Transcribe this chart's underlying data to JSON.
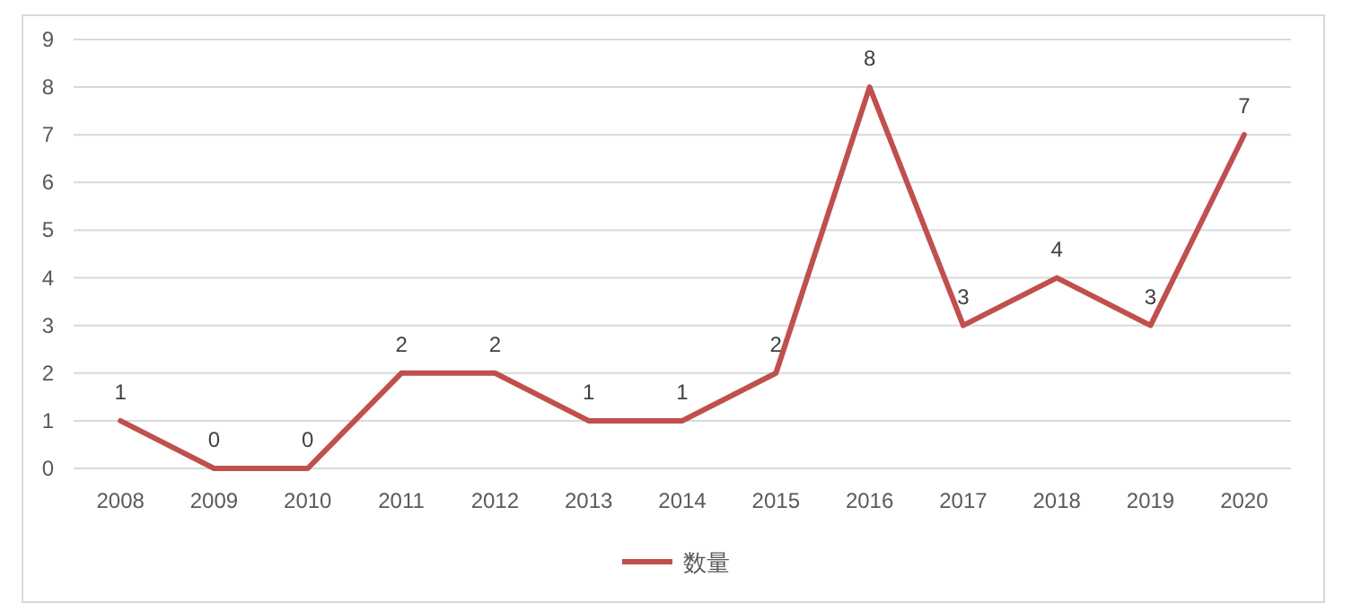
{
  "chart_data": {
    "type": "line",
    "categories": [
      "2008",
      "2009",
      "2010",
      "2011",
      "2012",
      "2013",
      "2014",
      "2015",
      "2016",
      "2017",
      "2018",
      "2019",
      "2020"
    ],
    "series": [
      {
        "name": "数量",
        "color": "#c0504d",
        "values": [
          1,
          0,
          0,
          2,
          2,
          1,
          1,
          2,
          8,
          3,
          4,
          3,
          7
        ]
      }
    ],
    "ylim": [
      0,
      9
    ],
    "yticks": [
      0,
      1,
      2,
      3,
      4,
      5,
      6,
      7,
      8,
      9
    ],
    "grid": "y",
    "legend": "bottom",
    "data_labels": true,
    "marker": "none",
    "line_style": "solid"
  }
}
